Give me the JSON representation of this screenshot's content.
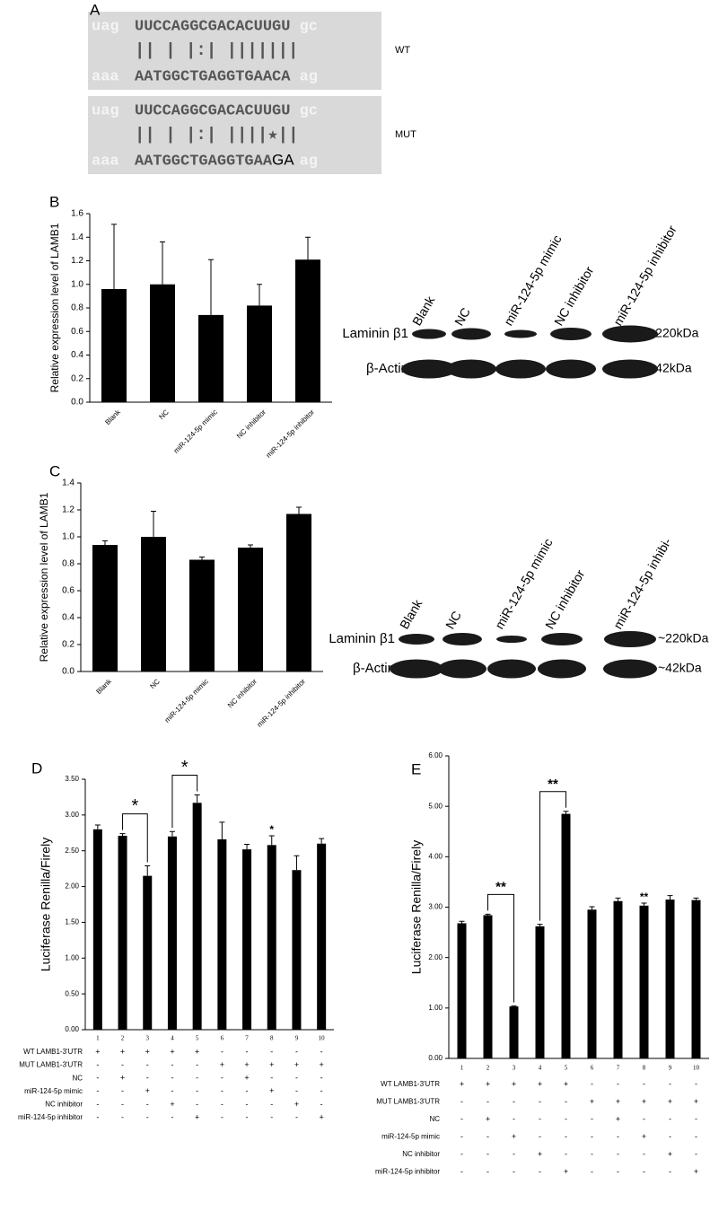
{
  "panel_labels": [
    "A",
    "B",
    "C",
    "D",
    "E"
  ],
  "alignment": [
    {
      "label": "WT",
      "target_left": "uag",
      "target": "UUCCAGGCGACACUUGU",
      "target_right": "gc",
      "pairing": "|| | |:| |||||||",
      "mirna_left": "aaa",
      "mirna": "AATGGCTGAGGTGAACA",
      "mirna_right": "ag"
    },
    {
      "label": "MUT",
      "target_left": "uag",
      "target": "UUCCAGGCGACACUUGU",
      "target_right": "gc",
      "pairing": "|| | |:| ||||★||",
      "mirna_left": "aaa",
      "mirna": "AATGGCTGAGGTGAA",
      "mirna_mutation": "GA",
      "mirna_right": "ag"
    }
  ],
  "blots": [
    {
      "lanes": [
        "Blank",
        "NC",
        "miR-124-5p mimic",
        "NC inhibitor",
        "miR-124-5p inhibitor"
      ],
      "proteins": [
        {
          "name": "Laminin β1",
          "size": "~220kDa"
        },
        {
          "name": "β-Actin",
          "size": "~42kDa"
        }
      ]
    },
    {
      "lanes": [
        "Blank",
        "NC",
        "miR-124-5p mimic",
        "NC inhibitor",
        "miR-124-5p inhibi-"
      ],
      "proteins": [
        {
          "name": "Laminin β1",
          "size": "~220kDa"
        },
        {
          "name": "β-Actin",
          "size": "~42kDa"
        }
      ]
    }
  ],
  "chart_data": [
    {
      "type": "bar",
      "y_label": "Relative expression level of LAMB1",
      "color": "#000000",
      "categories": [
        "Blank",
        "NC",
        "miR-124-5p mimic",
        "NC inhibitor",
        "miR-124-5p inhibitor"
      ],
      "values": [
        0.96,
        1.0,
        0.74,
        0.82,
        1.21
      ],
      "errors": [
        0.55,
        0.36,
        0.47,
        0.18,
        0.19
      ],
      "ylim": [
        0,
        1.6
      ],
      "yticks": [
        {
          "value": 0,
          "label": "0.0"
        },
        {
          "value": 0.2,
          "label": "0.2"
        },
        {
          "value": 0.4,
          "label": "0.4"
        },
        {
          "value": 0.6,
          "label": "0.6"
        },
        {
          "value": 0.8,
          "label": "0.8"
        },
        {
          "value": 1.0,
          "label": "1.0"
        },
        {
          "value": 1.2,
          "label": "1.2"
        },
        {
          "value": 1.4,
          "label": "1.4"
        },
        {
          "value": 1.6,
          "label": "1.6"
        }
      ]
    },
    {
      "type": "bar",
      "y_label": "Relative expression level of LAMB1",
      "color": "#000000",
      "categories": [
        "Blank",
        "NC",
        "miR-124-5p mimic",
        "NC inhibitor",
        "miR-124-5p inhibitor"
      ],
      "values": [
        0.94,
        1.0,
        0.83,
        0.92,
        1.17
      ],
      "errors": [
        0.03,
        0.19,
        0.02,
        0.02,
        0.05
      ],
      "ylim": [
        0,
        1.4
      ],
      "yticks": [
        {
          "value": 0,
          "label": "0.0"
        },
        {
          "value": 0.2,
          "label": "0.2"
        },
        {
          "value": 0.4,
          "label": "0.4"
        },
        {
          "value": 0.6,
          "label": "0.6"
        },
        {
          "value": 0.8,
          "label": "0.8"
        },
        {
          "value": 1.0,
          "label": "1.0"
        },
        {
          "value": 1.2,
          "label": "1.2"
        },
        {
          "value": 1.4,
          "label": "1.4"
        }
      ]
    },
    {
      "type": "bar",
      "y_label": "Luciferase Renilla/Firely",
      "color": "#000000",
      "categories": [
        "1",
        "2",
        "3",
        "4",
        "5",
        "6",
        "7",
        "8",
        "9",
        "10"
      ],
      "values": [
        2.8,
        2.71,
        2.15,
        2.7,
        3.17,
        2.66,
        2.52,
        2.58,
        2.23,
        2.6
      ],
      "errors": [
        0.06,
        0.03,
        0.14,
        0.07,
        0.11,
        0.24,
        0.07,
        0.13,
        0.2,
        0.07
      ],
      "ylim": [
        0,
        3.5
      ],
      "yticks": [
        {
          "value": 0,
          "label": "0.00"
        },
        {
          "value": 0.5,
          "label": "0.50"
        },
        {
          "value": 1,
          "label": "1.00"
        },
        {
          "value": 1.5,
          "label": "1.50"
        },
        {
          "value": 2,
          "label": "2.00"
        },
        {
          "value": 2.5,
          "label": "2.50"
        },
        {
          "value": 3,
          "label": "3.00"
        },
        {
          "value": 3.5,
          "label": "3.50"
        }
      ],
      "annotations": [
        "*",
        "*",
        "*"
      ],
      "conditions": [
        {
          "name": "WT LAMB1-3'UTR",
          "marks": [
            "+",
            "+",
            "+",
            "+",
            "+",
            "-",
            "-",
            "-",
            "-",
            "-"
          ]
        },
        {
          "name": "MUT LAMB1-3'UTR",
          "marks": [
            "-",
            "-",
            "-",
            "-",
            "-",
            "+",
            "+",
            "+",
            "+",
            "+"
          ]
        },
        {
          "name": "NC",
          "marks": [
            "-",
            "+",
            "-",
            "-",
            "-",
            "-",
            "+",
            "-",
            "-",
            "-"
          ]
        },
        {
          "name": "miR-124-5p mimic",
          "marks": [
            "-",
            "-",
            "+",
            "-",
            "-",
            "-",
            "-",
            "+",
            "-",
            "-"
          ]
        },
        {
          "name": "NC inhibitor",
          "marks": [
            "-",
            "-",
            "-",
            "+",
            "-",
            "-",
            "-",
            "-",
            "+",
            "-"
          ]
        },
        {
          "name": "miR-124-5p inhibitor",
          "marks": [
            "-",
            "-",
            "-",
            "-",
            "+",
            "-",
            "-",
            "-",
            "-",
            "+"
          ]
        }
      ]
    },
    {
      "type": "bar",
      "y_label": "Luciferase Renilla/Firely",
      "color": "#000000",
      "categories": [
        "1",
        "2",
        "3",
        "4",
        "5",
        "6",
        "7",
        "8",
        "9",
        "10"
      ],
      "values": [
        2.68,
        2.84,
        1.03,
        2.62,
        4.85,
        2.95,
        3.12,
        3.03,
        3.15,
        3.14
      ],
      "errors": [
        0.04,
        0.02,
        0.01,
        0.04,
        0.05,
        0.06,
        0.06,
        0.05,
        0.08,
        0.04
      ],
      "ylim": [
        0,
        6
      ],
      "yticks": [
        {
          "value": 0,
          "label": "0.00"
        },
        {
          "value": 1,
          "label": "1.00"
        },
        {
          "value": 2,
          "label": "2.00"
        },
        {
          "value": 3,
          "label": "3.00"
        },
        {
          "value": 4,
          "label": "4.00"
        },
        {
          "value": 5,
          "label": "5.00"
        },
        {
          "value": 6,
          "label": "6.00"
        }
      ],
      "annotations": [
        "**",
        "**",
        "**"
      ],
      "conditions": [
        {
          "name": "WT LAMB1-3'UTR",
          "marks": [
            "+",
            "+",
            "+",
            "+",
            "+",
            "-",
            "-",
            "-",
            "-",
            "-"
          ]
        },
        {
          "name": "MUT LAMB1-3'UTR",
          "marks": [
            "-",
            "-",
            "-",
            "-",
            "-",
            "+",
            "+",
            "+",
            "+",
            "+"
          ]
        },
        {
          "name": "NC",
          "marks": [
            "-",
            "+",
            "-",
            "-",
            "-",
            "-",
            "+",
            "-",
            "-",
            "-"
          ]
        },
        {
          "name": "miR-124-5p mimic",
          "marks": [
            "-",
            "-",
            "+",
            "-",
            "-",
            "-",
            "-",
            "+",
            "-",
            "-"
          ]
        },
        {
          "name": "NC inhibitor",
          "marks": [
            "-",
            "-",
            "-",
            "+",
            "-",
            "-",
            "-",
            "-",
            "+",
            "-"
          ]
        },
        {
          "name": "miR-124-5p inhibitor",
          "marks": [
            "-",
            "-",
            "-",
            "-",
            "+",
            "-",
            "-",
            "-",
            "-",
            "+"
          ]
        }
      ]
    }
  ]
}
